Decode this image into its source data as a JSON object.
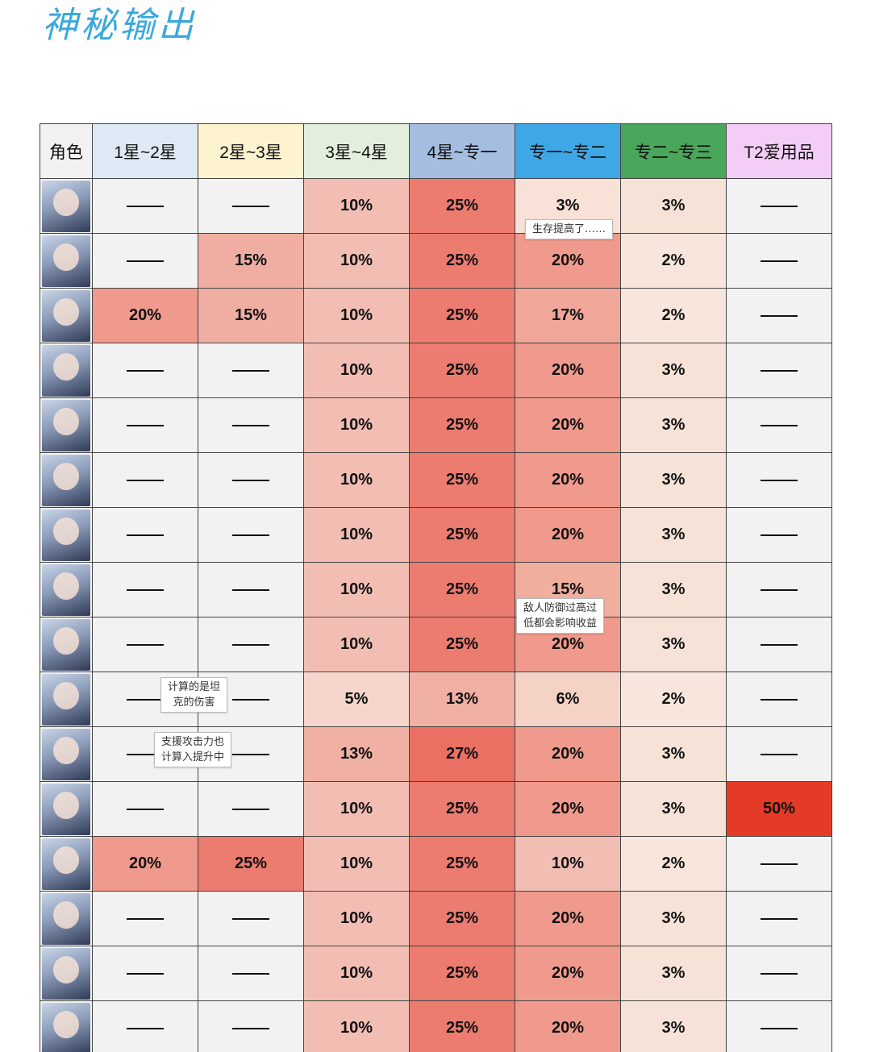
{
  "title": "神秘输出",
  "headers": [
    {
      "label": "角色",
      "color": "#f2f2f2"
    },
    {
      "label": "1星~2星",
      "color": "#dfe9f6"
    },
    {
      "label": "2星~3星",
      "color": "#fdf3cf"
    },
    {
      "label": "3星~4星",
      "color": "#e3efdc"
    },
    {
      "label": "4星~专一",
      "color": "#a4bde0"
    },
    {
      "label": "专一~专二",
      "color": "#3ea8e6"
    },
    {
      "label": "专二~专三",
      "color": "#4aa65a"
    },
    {
      "label": "T2爱用品",
      "color": "#f3cdf5"
    }
  ],
  "rows": [
    {
      "avatar": "character-portrait",
      "cells": [
        "——",
        "——",
        "10%",
        "25%",
        "3%",
        "3%",
        "——"
      ],
      "colors": [
        "#f2f2f2",
        "#f2f2f2",
        "#f2beb4",
        "#ec7b70",
        "#f8e2d8",
        "#f6e2d7",
        "#f2f2f2"
      ]
    },
    {
      "avatar": "character-portrait",
      "cells": [
        "——",
        "15%",
        "10%",
        "25%",
        "20%",
        "2%",
        "——"
      ],
      "colors": [
        "#f2f2f2",
        "#f0aea2",
        "#f2beb4",
        "#ec7b70",
        "#ef9a8c",
        "#f8e6dc",
        "#f2f2f2"
      ]
    },
    {
      "avatar": "character-portrait",
      "cells": [
        "20%",
        "15%",
        "10%",
        "25%",
        "17%",
        "2%",
        "——"
      ],
      "colors": [
        "#ef9a8c",
        "#f0aea2",
        "#f2beb4",
        "#ec7b70",
        "#f0a699",
        "#f8e6dc",
        "#f2f2f2"
      ]
    },
    {
      "avatar": "character-portrait",
      "cells": [
        "——",
        "——",
        "10%",
        "25%",
        "20%",
        "3%",
        "——"
      ],
      "colors": [
        "#f2f2f2",
        "#f2f2f2",
        "#f2beb4",
        "#ec7b70",
        "#ef9a8c",
        "#f6e2d7",
        "#f2f2f2"
      ]
    },
    {
      "avatar": "character-portrait",
      "cells": [
        "——",
        "——",
        "10%",
        "25%",
        "20%",
        "3%",
        "——"
      ],
      "colors": [
        "#f2f2f2",
        "#f2f2f2",
        "#f2beb4",
        "#ec7b70",
        "#ef9a8c",
        "#f6e2d7",
        "#f2f2f2"
      ]
    },
    {
      "avatar": "character-portrait",
      "cells": [
        "——",
        "——",
        "10%",
        "25%",
        "20%",
        "3%",
        "——"
      ],
      "colors": [
        "#f2f2f2",
        "#f2f2f2",
        "#f2beb4",
        "#ec7b70",
        "#ef9a8c",
        "#f6e2d7",
        "#f2f2f2"
      ]
    },
    {
      "avatar": "character-portrait",
      "cells": [
        "——",
        "——",
        "10%",
        "25%",
        "20%",
        "3%",
        "——"
      ],
      "colors": [
        "#f2f2f2",
        "#f2f2f2",
        "#f2beb4",
        "#ec7b70",
        "#ef9a8c",
        "#f6e2d7",
        "#f2f2f2"
      ]
    },
    {
      "avatar": "character-portrait",
      "cells": [
        "——",
        "——",
        "10%",
        "25%",
        "15%",
        "3%",
        "——"
      ],
      "colors": [
        "#f2f2f2",
        "#f2f2f2",
        "#f2beb4",
        "#ec7b70",
        "#f0ae9f",
        "#f6e2d7",
        "#f2f2f2"
      ]
    },
    {
      "avatar": "character-portrait",
      "cells": [
        "——",
        "——",
        "10%",
        "25%",
        "20%",
        "3%",
        "——"
      ],
      "colors": [
        "#f2f2f2",
        "#f2f2f2",
        "#f2beb4",
        "#ec7b70",
        "#ef9a8c",
        "#f6e2d7",
        "#f2f2f2"
      ]
    },
    {
      "avatar": "character-portrait",
      "cells": [
        "——",
        "——",
        "5%",
        "13%",
        "6%",
        "2%",
        "——"
      ],
      "colors": [
        "#f2f2f2",
        "#f2f2f2",
        "#f6d6cc",
        "#f0b0a4",
        "#f5d2c6",
        "#f8e6dc",
        "#f2f2f2"
      ]
    },
    {
      "avatar": "character-portrait",
      "cells": [
        "——",
        "——",
        "13%",
        "27%",
        "20%",
        "3%",
        "——"
      ],
      "colors": [
        "#f2f2f2",
        "#f2f2f2",
        "#f0b0a4",
        "#ea7064",
        "#ef9a8c",
        "#f6e2d7",
        "#f2f2f2"
      ]
    },
    {
      "avatar": "character-portrait",
      "cells": [
        "——",
        "——",
        "10%",
        "25%",
        "20%",
        "3%",
        "50%"
      ],
      "colors": [
        "#f2f2f2",
        "#f2f2f2",
        "#f2beb4",
        "#ec7b70",
        "#ef9a8c",
        "#f6e2d7",
        "#e53a26"
      ]
    },
    {
      "avatar": "character-portrait",
      "cells": [
        "20%",
        "25%",
        "10%",
        "25%",
        "10%",
        "2%",
        "——"
      ],
      "colors": [
        "#ef9a8c",
        "#ec7b70",
        "#f2beb4",
        "#ec7b70",
        "#f2beb4",
        "#f8e6dc",
        "#f2f2f2"
      ]
    },
    {
      "avatar": "character-portrait",
      "cells": [
        "——",
        "——",
        "10%",
        "25%",
        "20%",
        "3%",
        "——"
      ],
      "colors": [
        "#f2f2f2",
        "#f2f2f2",
        "#f2beb4",
        "#ec7b70",
        "#ef9a8c",
        "#f6e2d7",
        "#f2f2f2"
      ]
    },
    {
      "avatar": "character-portrait",
      "cells": [
        "——",
        "——",
        "10%",
        "25%",
        "20%",
        "3%",
        "——"
      ],
      "colors": [
        "#f2f2f2",
        "#f2f2f2",
        "#f2beb4",
        "#ec7b70",
        "#ef9a8c",
        "#f6e2d7",
        "#f2f2f2"
      ]
    },
    {
      "avatar": "character-portrait",
      "cells": [
        "——",
        "——",
        "10%",
        "25%",
        "20%",
        "3%",
        "——"
      ],
      "colors": [
        "#f2f2f2",
        "#f2f2f2",
        "#f2beb4",
        "#ec7b70",
        "#ef9a8c",
        "#f6e2d7",
        "#f2f2f2"
      ]
    }
  ],
  "notes": {
    "survival": "生存提高了……",
    "enemy_defense": [
      "敌人防御过高过",
      "低都会影响收益"
    ],
    "tank_damage": [
      "计算的是坦",
      "克的伤害"
    ],
    "support_attack": [
      "支援攻击力也",
      "计算入提升中"
    ]
  }
}
